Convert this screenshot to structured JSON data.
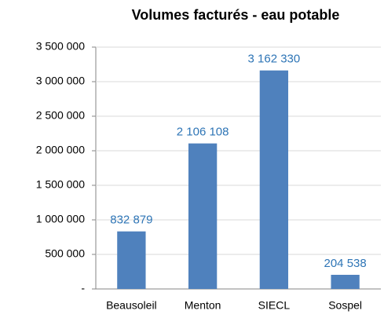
{
  "chart_data": {
    "type": "bar",
    "title": "Volumes facturés - eau potable",
    "categories": [
      "Beausoleil",
      "Menton",
      "SIECL",
      "Sospel"
    ],
    "values": [
      832879,
      2106108,
      3162330,
      204538
    ],
    "value_labels": [
      "832 879",
      "2 106 108",
      "3 162 330",
      "204 538"
    ],
    "color": "#4f81bd",
    "ylim": [
      0,
      3500000
    ],
    "yticks": [
      {
        "value": 0,
        "label": "-"
      },
      {
        "value": 500000,
        "label": "500 000"
      },
      {
        "value": 1000000,
        "label": "1 000 000"
      },
      {
        "value": 1500000,
        "label": "1 500 000"
      },
      {
        "value": 2000000,
        "label": "2 000 000"
      },
      {
        "value": 2500000,
        "label": "2 500 000"
      },
      {
        "value": 3000000,
        "label": "3 000 000"
      },
      {
        "value": 3500000,
        "label": "3 500 000"
      }
    ],
    "grid": true
  }
}
